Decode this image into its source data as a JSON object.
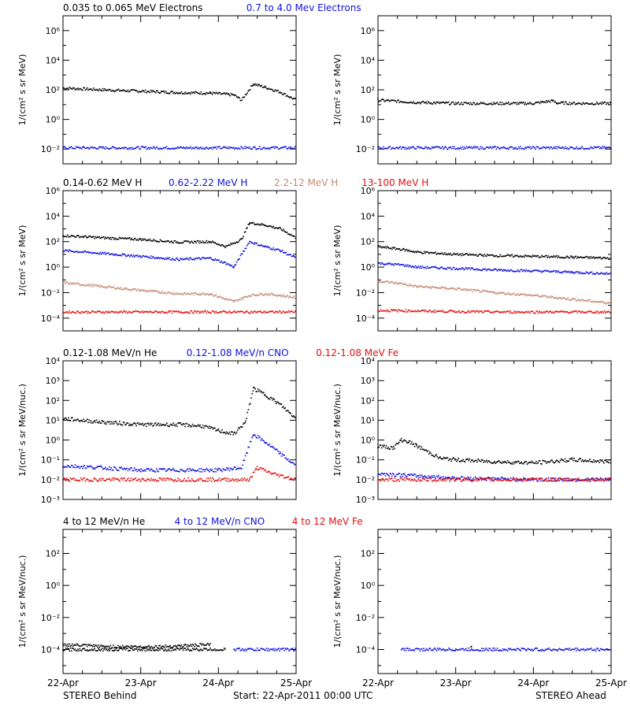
{
  "colors": {
    "black": "#000000",
    "blue": "#1010e0",
    "tan": "#c58a70",
    "red": "#e01010"
  },
  "footer": {
    "left": "STEREO Behind",
    "center": "Start: 22-Apr-2011 00:00 UTC",
    "right": "STEREO Ahead"
  },
  "x_ticks": [
    "22-Apr",
    "23-Apr",
    "24-Apr",
    "25-Apr"
  ],
  "chart_data": [
    {
      "type": "scatter",
      "row": 0,
      "legend": [
        {
          "text": "0.035 to 0.065 MeV Electrons",
          "color": "#000000"
        },
        {
          "text": "0.7 to 4.0 Mev Electrons",
          "color": "#1010e0"
        }
      ],
      "ylabel": "1/(cm² s sr MeV)",
      "yscale": "log",
      "ylim_exp": [
        -3,
        7
      ],
      "ytick_exps": [
        -2,
        0,
        2,
        4,
        6
      ],
      "ytick_labels": [
        "10⁻²",
        "10⁰",
        "10²",
        "10⁴",
        "10⁶"
      ],
      "xlim_days": [
        0,
        3
      ],
      "panels": [
        {
          "name": "STEREO Behind",
          "series": [
            {
              "color": "#000000",
              "points": [
                [
                  0,
                  130
                ],
                [
                  0.5,
                  100
                ],
                [
                  1,
                  80
                ],
                [
                  1.5,
                  65
                ],
                [
                  1.9,
                  60
                ],
                [
                  2.2,
                  45
                ],
                [
                  2.3,
                  20
                ],
                [
                  2.45,
                  250
                ],
                [
                  2.6,
                  150
                ],
                [
                  2.8,
                  70
                ],
                [
                  3,
                  20
                ]
              ]
            },
            {
              "color": "#1010e0",
              "points": [
                [
                  0,
                  0.012
                ],
                [
                  1.5,
                  0.012
                ],
                [
                  3,
                  0.012
                ]
              ]
            }
          ]
        },
        {
          "name": "STEREO Ahead",
          "series": [
            {
              "color": "#000000",
              "points": [
                [
                  0,
                  20
                ],
                [
                  0.5,
                  14
                ],
                [
                  1,
                  12
                ],
                [
                  1.5,
                  12
                ],
                [
                  2,
                  12
                ],
                [
                  2.25,
                  18
                ],
                [
                  2.3,
                  13
                ],
                [
                  2.6,
                  12
                ],
                [
                  3,
                  12
                ]
              ]
            },
            {
              "color": "#1010e0",
              "points": [
                [
                  0,
                  0.012
                ],
                [
                  1.5,
                  0.012
                ],
                [
                  3,
                  0.012
                ]
              ]
            }
          ]
        }
      ]
    },
    {
      "type": "scatter",
      "row": 1,
      "legend": [
        {
          "text": "0.14-0.62 MeV H",
          "color": "#000000"
        },
        {
          "text": "0.62-2.22 MeV H",
          "color": "#1010e0"
        },
        {
          "text": "2.2-12 MeV H",
          "color": "#c58a70"
        },
        {
          "text": "13-100 MeV H",
          "color": "#e01010"
        }
      ],
      "ylabel": "1/(cm² s sr MeV)",
      "yscale": "log",
      "ylim_exp": [
        -5,
        6
      ],
      "ytick_exps": [
        -4,
        -2,
        0,
        2,
        4,
        6
      ],
      "ytick_labels": [
        "10⁻⁴",
        "10⁻²",
        "10⁰",
        "10²",
        "10⁴",
        "10⁶"
      ],
      "xlim_days": [
        0,
        3
      ],
      "panels": [
        {
          "name": "STEREO Behind",
          "series": [
            {
              "color": "#000000",
              "points": [
                [
                  0,
                  300
                ],
                [
                  0.5,
                  200
                ],
                [
                  1,
                  150
                ],
                [
                  1.5,
                  90
                ],
                [
                  1.9,
                  100
                ],
                [
                  2.1,
                  40
                ],
                [
                  2.3,
                  150
                ],
                [
                  2.4,
                  3000
                ],
                [
                  2.6,
                  2000
                ],
                [
                  2.8,
                  1000
                ],
                [
                  3,
                  200
                ]
              ]
            },
            {
              "color": "#1010e0",
              "points": [
                [
                  0,
                  20
                ],
                [
                  0.5,
                  12
                ],
                [
                  1,
                  7
                ],
                [
                  1.5,
                  4
                ],
                [
                  1.9,
                  5
                ],
                [
                  2.1,
                  2
                ],
                [
                  2.2,
                  1
                ],
                [
                  2.4,
                  100
                ],
                [
                  2.6,
                  40
                ],
                [
                  2.8,
                  20
                ],
                [
                  3,
                  5
                ]
              ]
            },
            {
              "color": "#c58a70",
              "points": [
                [
                  0,
                  0.06
                ],
                [
                  0.5,
                  0.03
                ],
                [
                  1,
                  0.015
                ],
                [
                  1.5,
                  0.008
                ],
                [
                  1.9,
                  0.008
                ],
                [
                  2.1,
                  0.003
                ],
                [
                  2.2,
                  0.002
                ],
                [
                  2.4,
                  0.006
                ],
                [
                  2.6,
                  0.008
                ],
                [
                  2.8,
                  0.006
                ],
                [
                  3,
                  0.004
                ]
              ]
            },
            {
              "color": "#e01010",
              "points": [
                [
                  0,
                  0.0003
                ],
                [
                  1.5,
                  0.0003
                ],
                [
                  3,
                  0.0003
                ]
              ]
            }
          ]
        },
        {
          "name": "STEREO Ahead",
          "series": [
            {
              "color": "#000000",
              "points": [
                [
                  0,
                  40
                ],
                [
                  0.3,
                  25
                ],
                [
                  0.5,
                  15
                ],
                [
                  1,
                  10
                ],
                [
                  1.5,
                  8
                ],
                [
                  2,
                  7
                ],
                [
                  2.5,
                  6
                ],
                [
                  3,
                  5
                ]
              ]
            },
            {
              "color": "#1010e0",
              "points": [
                [
                  0,
                  2
                ],
                [
                  0.3,
                  1.5
                ],
                [
                  0.5,
                  1
                ],
                [
                  1,
                  0.8
                ],
                [
                  1.5,
                  0.6
                ],
                [
                  2,
                  0.5
                ],
                [
                  2.5,
                  0.4
                ],
                [
                  3,
                  0.3
                ]
              ]
            },
            {
              "color": "#c58a70",
              "points": [
                [
                  0,
                  0.08
                ],
                [
                  0.3,
                  0.05
                ],
                [
                  0.5,
                  0.03
                ],
                [
                  1,
                  0.02
                ],
                [
                  1.5,
                  0.01
                ],
                [
                  2,
                  0.006
                ],
                [
                  2.5,
                  0.003
                ],
                [
                  3,
                  0.0015
                ]
              ]
            },
            {
              "color": "#e01010",
              "points": [
                [
                  0,
                  0.0004
                ],
                [
                  1.5,
                  0.0003
                ],
                [
                  3,
                  0.0003
                ]
              ]
            }
          ]
        }
      ]
    },
    {
      "type": "scatter",
      "row": 2,
      "legend": [
        {
          "text": "0.12-1.08 MeV/n He",
          "color": "#000000"
        },
        {
          "text": "0.12-1.08 MeV/n CNO",
          "color": "#1010e0"
        },
        {
          "text": "0.12-1.08 MeV Fe",
          "color": "#e01010"
        }
      ],
      "ylabel": "1/(cm² s sr MeV/nuc.)",
      "yscale": "log",
      "ylim_exp": [
        -3,
        4
      ],
      "ytick_exps": [
        -3,
        -2,
        -1,
        0,
        1,
        2,
        3,
        4
      ],
      "ytick_labels": [
        "10⁻³",
        "10⁻²",
        "10⁻¹",
        "10⁰",
        "10¹",
        "10²",
        "10³",
        "10⁴"
      ],
      "xlim_days": [
        0,
        3
      ],
      "panels": [
        {
          "name": "STEREO Behind",
          "series": [
            {
              "color": "#000000",
              "points": [
                [
                  0,
                  12
                ],
                [
                  0.5,
                  8
                ],
                [
                  1,
                  6
                ],
                [
                  1.5,
                  6
                ],
                [
                  1.8,
                  5
                ],
                [
                  2,
                  3
                ],
                [
                  2.2,
                  2
                ],
                [
                  2.35,
                  8
                ],
                [
                  2.45,
                  400
                ],
                [
                  2.6,
                  200
                ],
                [
                  2.8,
                  60
                ],
                [
                  3,
                  12
                ]
              ]
            },
            {
              "color": "#1010e0",
              "points": [
                [
                  0,
                  0.05
                ],
                [
                  0.5,
                  0.04
                ],
                [
                  1,
                  0.03
                ],
                [
                  1.5,
                  0.03
                ],
                [
                  2,
                  0.03
                ],
                [
                  2.3,
                  0.04
                ],
                [
                  2.45,
                  2
                ],
                [
                  2.6,
                  0.8
                ],
                [
                  2.8,
                  0.2
                ],
                [
                  3,
                  0.05
                ]
              ]
            },
            {
              "color": "#e01010",
              "points": [
                [
                  0,
                  0.01
                ],
                [
                  1,
                  0.01
                ],
                [
                  2,
                  0.01
                ],
                [
                  2.4,
                  0.01
                ],
                [
                  2.5,
                  0.04
                ],
                [
                  2.7,
                  0.02
                ],
                [
                  3,
                  0.01
                ]
              ]
            }
          ]
        },
        {
          "name": "STEREO Ahead",
          "series": [
            {
              "color": "#000000",
              "points": [
                [
                  0,
                  0.5
                ],
                [
                  0.2,
                  0.4
                ],
                [
                  0.3,
                  1
                ],
                [
                  0.4,
                  0.8
                ],
                [
                  0.5,
                  0.5
                ],
                [
                  0.8,
                  0.12
                ],
                [
                  1,
                  0.1
                ],
                [
                  1.5,
                  0.08
                ],
                [
                  2,
                  0.07
                ],
                [
                  2.5,
                  0.1
                ],
                [
                  3,
                  0.08
                ]
              ]
            },
            {
              "color": "#1010e0",
              "points": [
                [
                  0,
                  0.02
                ],
                [
                  1,
                  0.012
                ],
                [
                  2,
                  0.01
                ],
                [
                  3,
                  0.01
                ]
              ]
            },
            {
              "color": "#e01010",
              "points": [
                [
                  0,
                  0.01
                ],
                [
                  1.5,
                  0.01
                ],
                [
                  3,
                  0.01
                ]
              ]
            }
          ]
        }
      ]
    },
    {
      "type": "scatter",
      "row": 3,
      "legend": [
        {
          "text": "4 to 12 MeV/n He",
          "color": "#000000"
        },
        {
          "text": "4 to 12 MeV/n CNO",
          "color": "#1010e0"
        },
        {
          "text": "4 to 12 MeV Fe",
          "color": "#e01010"
        }
      ],
      "ylabel": "1/(cm² s sr MeV/nuc.)",
      "yscale": "log",
      "ylim_exp": [
        -5.5,
        3.5
      ],
      "ytick_exps": [
        -4,
        -2,
        0,
        2
      ],
      "ytick_labels": [
        "10⁻⁴",
        "10⁻²",
        "10⁰",
        "10²"
      ],
      "xlim_days": [
        0,
        3
      ],
      "panels": [
        {
          "name": "STEREO Behind",
          "series": [
            {
              "color": "#000000",
              "points": [
                [
                  0,
                  0.0002
                ],
                [
                  0.6,
                  0.00015
                ],
                [
                  1.2,
                  0.00015
                ],
                [
                  1.9,
                  0.0002
                ]
              ]
            },
            {
              "color": "#000000",
              "points": [
                [
                  0,
                  0.0001
                ],
                [
                  1.5,
                  0.0001
                ],
                [
                  2.1,
                  0.0001
                ]
              ]
            },
            {
              "color": "#1010e0",
              "points": [
                [
                  2.2,
                  0.0001
                ],
                [
                  3,
                  0.0001
                ]
              ]
            }
          ]
        },
        {
          "name": "STEREO Ahead",
          "series": [
            {
              "color": "#1010e0",
              "points": [
                [
                  0.3,
                  0.0001
                ],
                [
                  1,
                  0.0001
                ],
                [
                  1.5,
                  0.0001
                ],
                [
                  2,
                  0.0001
                ],
                [
                  3,
                  0.0001
                ]
              ]
            },
            {
              "color": "#000000",
              "points": [
                [
                  1.2,
                  0.00015
                ]
              ]
            }
          ]
        }
      ]
    }
  ]
}
